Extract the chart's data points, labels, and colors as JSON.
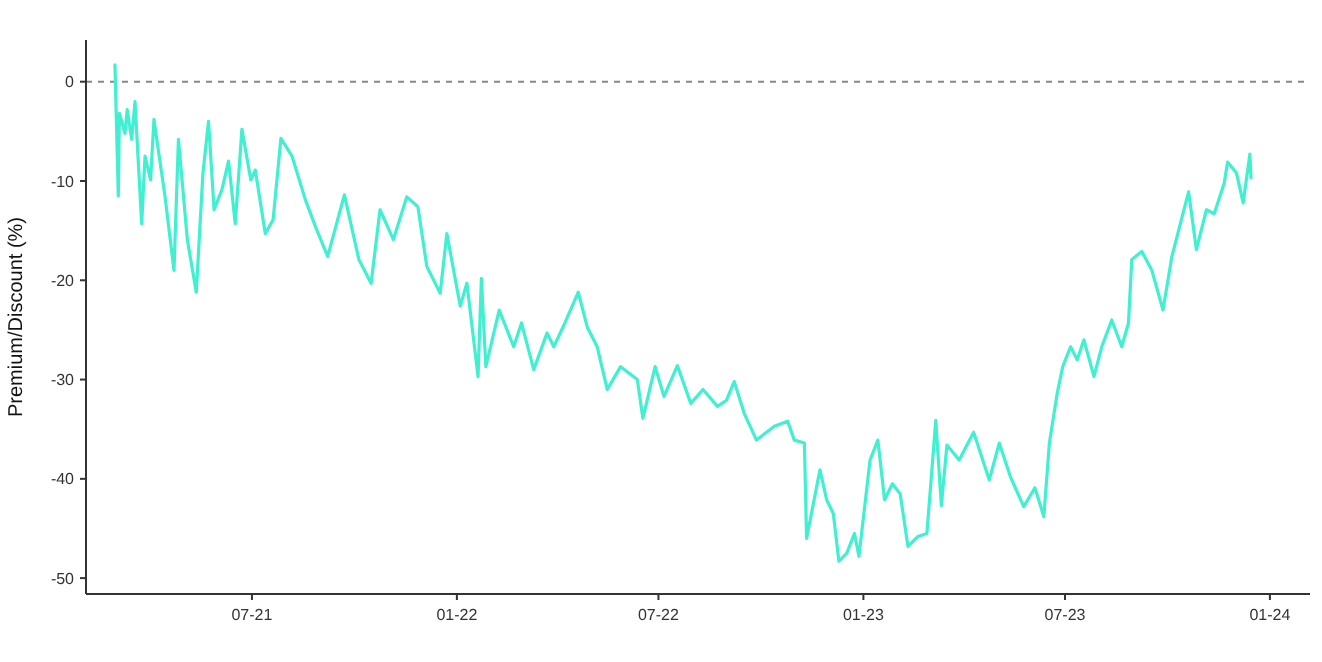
{
  "chart_data": {
    "type": "line",
    "ylabel": "Premium/Discount (%)",
    "xlim": [
      "2021-02-02",
      "2024-02-06"
    ],
    "ylim": [
      -51.6,
      4.2
    ],
    "xticks": [
      {
        "value": "2021-07-01",
        "label": "07-21"
      },
      {
        "value": "2022-01-01",
        "label": "01-22"
      },
      {
        "value": "2022-07-01",
        "label": "07-22"
      },
      {
        "value": "2023-01-01",
        "label": "01-23"
      },
      {
        "value": "2023-07-01",
        "label": "07-23"
      },
      {
        "value": "2024-01-01",
        "label": "01-24"
      }
    ],
    "yticks": [
      0,
      -10,
      -20,
      -30,
      -40,
      -50
    ],
    "grid": false,
    "line_style": "solid",
    "ref_lines": [
      {
        "axis": "y",
        "value": 0,
        "color": "#888888",
        "line_style": "dashed"
      }
    ],
    "x": [
      "2021-02-28",
      "2021-03-03",
      "2021-03-04",
      "2021-03-09",
      "2021-03-11",
      "2021-03-15",
      "2021-03-18",
      "2021-03-24",
      "2021-03-27",
      "2021-04-01",
      "2021-04-04",
      "2021-04-14",
      "2021-04-22",
      "2021-04-26",
      "2021-05-04",
      "2021-05-12",
      "2021-05-18",
      "2021-05-23",
      "2021-05-28",
      "2021-06-04",
      "2021-06-10",
      "2021-06-16",
      "2021-06-22",
      "2021-06-30",
      "2021-07-04",
      "2021-07-13",
      "2021-07-20",
      "2021-07-27",
      "2021-08-06",
      "2021-08-18",
      "2021-08-27",
      "2021-09-07",
      "2021-09-22",
      "2021-10-05",
      "2021-10-16",
      "2021-10-24",
      "2021-11-05",
      "2021-11-17",
      "2021-11-27",
      "2021-12-05",
      "2021-12-17",
      "2021-12-23",
      "2022-01-04",
      "2022-01-10",
      "2022-01-20",
      "2022-01-23",
      "2022-01-27",
      "2022-02-08",
      "2022-02-21",
      "2022-02-28",
      "2022-03-11",
      "2022-03-23",
      "2022-03-29",
      "2022-04-08",
      "2022-04-20",
      "2022-04-28",
      "2022-05-07",
      "2022-05-16",
      "2022-05-28",
      "2022-06-12",
      "2022-06-17",
      "2022-06-28",
      "2022-07-06",
      "2022-07-18",
      "2022-07-30",
      "2022-08-10",
      "2022-08-23",
      "2022-08-31",
      "2022-09-07",
      "2022-09-16",
      "2022-09-27",
      "2022-10-13",
      "2022-10-25",
      "2022-10-31",
      "2022-11-09",
      "2022-11-11",
      "2022-11-23",
      "2022-11-29",
      "2022-12-05",
      "2022-12-10",
      "2022-12-17",
      "2022-12-24",
      "2022-12-28",
      "2023-01-07",
      "2023-01-14",
      "2023-01-20",
      "2023-01-27",
      "2023-02-03",
      "2023-02-10",
      "2023-02-19",
      "2023-02-27",
      "2023-03-07",
      "2023-03-12",
      "2023-03-17",
      "2023-03-28",
      "2023-04-10",
      "2023-04-24",
      "2023-05-03",
      "2023-05-13",
      "2023-05-25",
      "2023-06-04",
      "2023-06-12",
      "2023-06-17",
      "2023-06-24",
      "2023-06-29",
      "2023-07-06",
      "2023-07-12",
      "2023-07-18",
      "2023-07-27",
      "2023-08-03",
      "2023-08-12",
      "2023-08-21",
      "2023-08-27",
      "2023-08-30",
      "2023-09-08",
      "2023-09-17",
      "2023-09-27",
      "2023-10-05",
      "2023-10-20",
      "2023-10-27",
      "2023-11-05",
      "2023-11-12",
      "2023-11-21",
      "2023-11-24",
      "2023-12-02",
      "2023-12-08",
      "2023-12-14",
      "2023-12-15"
    ],
    "series": [
      {
        "color": "#40f0d0",
        "values": [
          1.7,
          -11.5,
          -3.2,
          -5.2,
          -2.8,
          -5.8,
          -2,
          -14.3,
          -7.5,
          -9.9,
          -3.8,
          -11.6,
          -19,
          -5.8,
          -15.9,
          -21.2,
          -9.2,
          -4,
          -12.9,
          -10.9,
          -8,
          -14.3,
          -4.8,
          -9.9,
          -8.9,
          -15.3,
          -13.9,
          -5.7,
          -7.5,
          -11.9,
          -14.6,
          -17.6,
          -11.4,
          -17.9,
          -20.3,
          -12.9,
          -15.9,
          -11.6,
          -12.6,
          -18.6,
          -21.3,
          -15.3,
          -22.6,
          -20.3,
          -29.7,
          -19.8,
          -28.7,
          -23,
          -26.7,
          -24.3,
          -29,
          -25.3,
          -26.7,
          -24.3,
          -21.2,
          -24.7,
          -26.7,
          -31,
          -28.7,
          -30,
          -33.9,
          -28.7,
          -31.7,
          -28.6,
          -32.4,
          -31,
          -32.7,
          -32.1,
          -30.2,
          -33.4,
          -36.1,
          -34.7,
          -34.2,
          -36.1,
          -36.4,
          -46,
          -39.1,
          -42.1,
          -43.5,
          -48.3,
          -47.5,
          -45.5,
          -47.8,
          -38.1,
          -36.1,
          -42.1,
          -40.5,
          -41.5,
          -46.8,
          -45.8,
          -45.5,
          -34.1,
          -42.7,
          -36.6,
          -38.1,
          -35.3,
          -40.1,
          -36.4,
          -39.8,
          -42.8,
          -40.9,
          -43.8,
          -36.4,
          -31.4,
          -28.7,
          -26.7,
          -28,
          -26,
          -29.7,
          -26.7,
          -24,
          -26.7,
          -24.3,
          -17.9,
          -17.1,
          -19,
          -23,
          -17.6,
          -11.1,
          -16.9,
          -12.9,
          -13.3,
          -10.2,
          -8.1,
          -9.2,
          -12.2,
          -7.3,
          -9.7
        ]
      }
    ]
  }
}
